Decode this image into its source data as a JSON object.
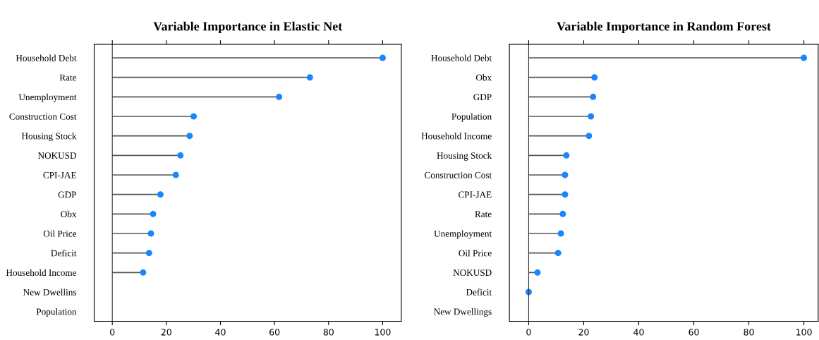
{
  "chart_data": [
    {
      "type": "lollipop",
      "title": "Variable Importance in Elastic Net",
      "orientation": "horizontal",
      "categories": [
        "Household Debt",
        "Rate",
        "Unemployment",
        "Construction Cost",
        "Housing Stock",
        "NOKUSD",
        "CPI-JAE",
        "GDP",
        "Obx",
        "Oil Price",
        "Deficit",
        "Household Income",
        "New Dwellins",
        "Population"
      ],
      "series": [
        {
          "color": "#1a85ff",
          "values": [
            100,
            73.1,
            61.7,
            30.1,
            28.6,
            25.2,
            23.5,
            17.8,
            15.1,
            14.3,
            13.6,
            11.4,
            null,
            null
          ]
        }
      ],
      "xlim": [
        -6.7,
        106.9
      ],
      "xticks": [
        0,
        20,
        40,
        60,
        80,
        100
      ],
      "grid": false,
      "marker": "circle"
    },
    {
      "type": "lollipop",
      "title": "Variable Importance in Random Forest",
      "orientation": "horizontal",
      "categories": [
        "Household Debt",
        "Obx",
        "GDP",
        "Population",
        "Household Income",
        "Housing Stock",
        "Construction Cost",
        "CPI-JAE",
        "Rate",
        "Unemployment",
        "Oil Price",
        "NOKUSD",
        "Deficit",
        "New Dwellings"
      ],
      "series": [
        {
          "color": "#1a85ff",
          "values": [
            100,
            23.9,
            23.4,
            22.6,
            21.9,
            13.7,
            13.2,
            13.2,
            12.4,
            11.7,
            10.7,
            3.2,
            0,
            null
          ]
        }
      ],
      "xlim": [
        -7,
        105.2
      ],
      "xticks": [
        0,
        20,
        40,
        60,
        80,
        100
      ],
      "grid": false,
      "marker": "circle"
    }
  ]
}
